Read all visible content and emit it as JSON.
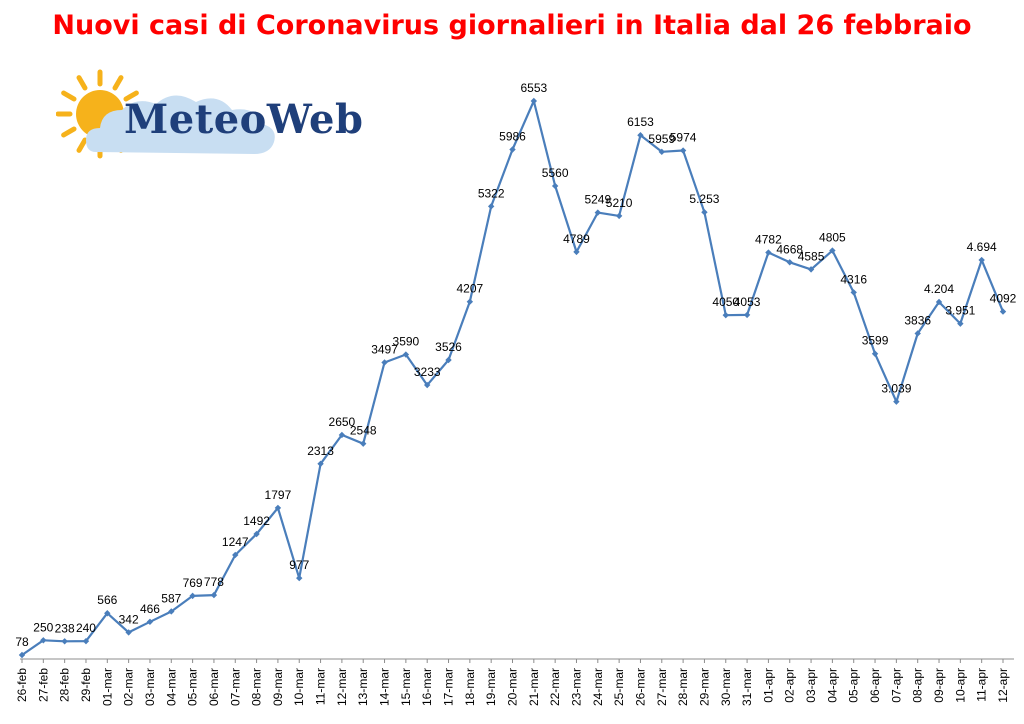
{
  "logo": {
    "text": "MeteoWeb"
  },
  "colors": {
    "title": "#ff0000",
    "line": "#4a7ebb",
    "logo_text": "#1f3f7a",
    "sun": "#f6b21b",
    "cloud": "#c8def2"
  },
  "chart_data": {
    "type": "line",
    "title": "Nuovi casi di Coronavirus giornalieri in Italia dal 26 febbraio",
    "xlabel": "",
    "ylabel": "",
    "ylim": [
      0,
      7000
    ],
    "grid": false,
    "legend": "none",
    "categories": [
      "26-feb",
      "27-feb",
      "28-feb",
      "29-feb",
      "01-mar",
      "02-mar",
      "03-mar",
      "04-mar",
      "05-mar",
      "06-mar",
      "07-mar",
      "08-mar",
      "09-mar",
      "10-mar",
      "11-mar",
      "12-mar",
      "13-mar",
      "14-mar",
      "15-mar",
      "16-mar",
      "17-mar",
      "18-mar",
      "19-mar",
      "20-mar",
      "21-mar",
      "22-mar",
      "23-mar",
      "24-mar",
      "25-mar",
      "26-mar",
      "27-mar",
      "28-mar",
      "29-mar",
      "30-mar",
      "31-mar",
      "01-apr",
      "02-apr",
      "03-apr",
      "04-apr",
      "05-apr",
      "06-apr",
      "07-apr",
      "08-apr",
      "09-apr",
      "10-apr",
      "11-apr",
      "12-apr"
    ],
    "values": [
      78,
      250,
      238,
      240,
      566,
      342,
      466,
      587,
      769,
      778,
      1247,
      1492,
      1797,
      977,
      2313,
      2650,
      2548,
      3497,
      3590,
      3233,
      3526,
      4207,
      5322,
      5986,
      6553,
      5560,
      4789,
      5249,
      5210,
      6153,
      5959,
      5974,
      5253,
      4050,
      4053,
      4782,
      4668,
      4585,
      4805,
      4316,
      3599,
      3039,
      3836,
      4204,
      3951,
      4694,
      4092
    ],
    "labels": [
      "78",
      "250",
      "238",
      "240",
      "566",
      "342",
      "466",
      "587",
      "769",
      "778",
      "1247",
      "1492",
      "1797",
      "977",
      "2313",
      "2650",
      "2548",
      "3497",
      "3590",
      "3233",
      "3526",
      "4207",
      "5322",
      "5986",
      "6553",
      "5560",
      "4789",
      "5249",
      "5210",
      "6153",
      "5959",
      "5974",
      "5.253",
      "4050",
      "4053",
      "4782",
      "4668",
      "4585",
      "4805",
      "4316",
      "3599",
      "3.039",
      "3836",
      "4.204",
      "3.951",
      "4.694",
      "4092"
    ]
  }
}
